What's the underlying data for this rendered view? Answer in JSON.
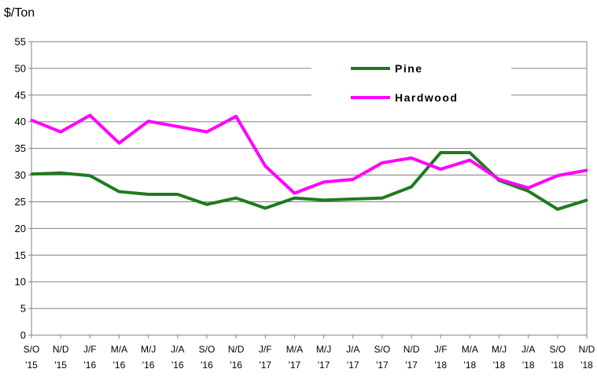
{
  "chart_data": {
    "type": "line",
    "ylabel": "$/Ton",
    "ylim": [
      0,
      55
    ],
    "yticks": [
      "0",
      "5",
      "10",
      "15",
      "20",
      "25",
      "30",
      "35",
      "40",
      "45",
      "50",
      "55"
    ],
    "categories": [
      {
        "top": "S/O",
        "bottom": "'15"
      },
      {
        "top": "N/D",
        "bottom": "'15"
      },
      {
        "top": "J/F",
        "bottom": "'16"
      },
      {
        "top": "M/A",
        "bottom": "'16"
      },
      {
        "top": "M/J",
        "bottom": "'16"
      },
      {
        "top": "J/A",
        "bottom": "'16"
      },
      {
        "top": "S/O",
        "bottom": "'16"
      },
      {
        "top": "N/D",
        "bottom": "'16"
      },
      {
        "top": "J/F",
        "bottom": "'17"
      },
      {
        "top": "M/A",
        "bottom": "'17"
      },
      {
        "top": "M/J",
        "bottom": "'17"
      },
      {
        "top": "J/A",
        "bottom": "'17"
      },
      {
        "top": "S/O",
        "bottom": "'17"
      },
      {
        "top": "N/D",
        "bottom": "'17"
      },
      {
        "top": "J/F",
        "bottom": "'18"
      },
      {
        "top": "M/A",
        "bottom": "'18"
      },
      {
        "top": "M/J",
        "bottom": "'18"
      },
      {
        "top": "J/A",
        "bottom": "'18"
      },
      {
        "top": "S/O",
        "bottom": "'18"
      },
      {
        "top": "N/D",
        "bottom": "'18"
      }
    ],
    "series": [
      {
        "name": "Pine",
        "color": "#1e7b1e",
        "values": [
          30.2,
          30.4,
          29.9,
          26.9,
          26.4,
          26.4,
          24.5,
          25.7,
          23.8,
          25.7,
          25.3,
          25.5,
          25.7,
          27.8,
          34.2,
          34.2,
          29.0,
          27.0,
          23.6,
          25.3
        ]
      },
      {
        "name": "Hardwood",
        "color": "#ff00ff",
        "values": [
          40.3,
          38.1,
          41.2,
          36.0,
          40.1,
          39.1,
          38.1,
          41.0,
          31.7,
          26.6,
          28.7,
          29.2,
          32.3,
          33.2,
          31.1,
          32.8,
          29.2,
          27.6,
          29.9,
          30.9
        ]
      }
    ],
    "grid": true,
    "legend_position": "top-right"
  }
}
